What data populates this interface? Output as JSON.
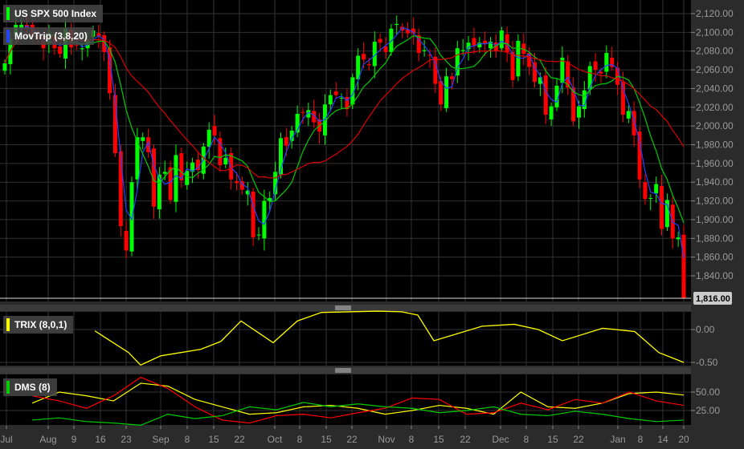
{
  "chart_data": [
    {
      "type": "candlestick",
      "title": "US SPX 500 Index",
      "indicator": "MovTrip (3,8,20)",
      "ylim": [
        1816,
        2130
      ],
      "yticks": [
        1840,
        1860,
        1880,
        1900,
        1920,
        1940,
        1960,
        1980,
        2000,
        2020,
        2040,
        2060,
        2080,
        2100,
        2120
      ],
      "ytick_labels": [
        "1,840.00",
        "1,860.00",
        "1,880.00",
        "1,900.00",
        "1,920.00",
        "1,940.00",
        "1,960.00",
        "1,980.00",
        "2,000.00",
        "2,020.00",
        "2,040.00",
        "2,060.00",
        "2,080.00",
        "2,100.00",
        "2,120.00"
      ],
      "last_price": "1,816.00",
      "closes": [
        2067,
        2093,
        2108,
        2108,
        2104,
        2098,
        2093,
        2083,
        2099,
        2083,
        2077,
        2104,
        2084,
        2086,
        2083,
        2091,
        2102,
        2096,
        2079,
        2035,
        1971,
        1893,
        1867,
        1940,
        1988,
        1988,
        1972,
        1914,
        1948,
        1951,
        1921,
        1969,
        1942,
        1952,
        1961,
        1953,
        1978,
        1996,
        1990,
        1958,
        1966,
        1943,
        1939,
        1932,
        1931,
        1881,
        1884,
        1920,
        1923,
        1951,
        1987,
        1979,
        1995,
        2013,
        2014,
        2017,
        2004,
        1994,
        2023,
        2033,
        2033,
        2030,
        2018,
        2052,
        2075,
        2071,
        2065,
        2090,
        2089,
        2079,
        2104,
        2109,
        2102,
        2099,
        2099,
        2078,
        2081,
        2075,
        2045,
        2023,
        2053,
        2050,
        2083,
        2081,
        2089,
        2086,
        2089,
        2088,
        2090,
        2080,
        2102,
        2079,
        2049,
        2091,
        2077,
        2063,
        2047,
        2052,
        2012,
        2021,
        2043,
        2073,
        2041,
        2005,
        2021,
        2038,
        2064,
        2060,
        2056,
        2078,
        2063,
        2044,
        2012,
        2016,
        1990,
        1943,
        1922,
        1923,
        1938,
        1890,
        1921,
        1880,
        1881,
        1816
      ],
      "colors": {
        "up": "#00ff00",
        "down": "#ff0000",
        "ma3": "#2244ff",
        "ma8": "#00cc00",
        "ma20": "#dd0000"
      }
    },
    {
      "type": "line",
      "title": "TRIX (8,0,1)",
      "yticks": [
        0,
        -0.5
      ],
      "ytick_labels": [
        "0.00",
        "-0.50"
      ],
      "color": "#ffff00",
      "values": [
        -0.02,
        -0.35,
        -0.54,
        -0.4,
        -0.3,
        -0.18,
        0.13,
        -0.2,
        0.13,
        0.26,
        0.28,
        0.27,
        0.22,
        -0.17,
        0.05,
        0.08,
        0.0,
        -0.17,
        0.02,
        -0.03,
        -0.35,
        -0.5
      ]
    },
    {
      "type": "line",
      "title": "DMS (8)",
      "yticks": [
        50,
        25
      ],
      "ytick_labels": [
        "50.00",
        "25.00"
      ],
      "series": [
        {
          "color": "#ffff00",
          "values": [
            35,
            50,
            45,
            38,
            62,
            58,
            40,
            30,
            20,
            22,
            30,
            32,
            28,
            20,
            25,
            32,
            28,
            20,
            50,
            30,
            28,
            35,
            48,
            50,
            46
          ]
        },
        {
          "color": "#ff0000",
          "values": [
            45,
            38,
            28,
            45,
            70,
            55,
            30,
            12,
            8,
            18,
            20,
            15,
            22,
            28,
            42,
            40,
            20,
            22,
            35,
            26,
            40,
            35,
            50,
            38,
            32
          ]
        },
        {
          "color": "#00cc00",
          "values": [
            12,
            15,
            10,
            8,
            5,
            20,
            14,
            18,
            30,
            26,
            36,
            30,
            34,
            30,
            28,
            22,
            25,
            30,
            20,
            18,
            24,
            20,
            14,
            10,
            12
          ]
        }
      ]
    }
  ],
  "xaxis": {
    "labels": [
      "Jul",
      "Aug",
      "9",
      "16",
      "23",
      "Sep",
      "8",
      "15",
      "22",
      "Oct",
      "8",
      "15",
      "22",
      "Nov",
      "8",
      "15",
      "22",
      "Dec",
      "8",
      "15",
      "22",
      "Jan",
      "8",
      "14",
      "20"
    ]
  }
}
